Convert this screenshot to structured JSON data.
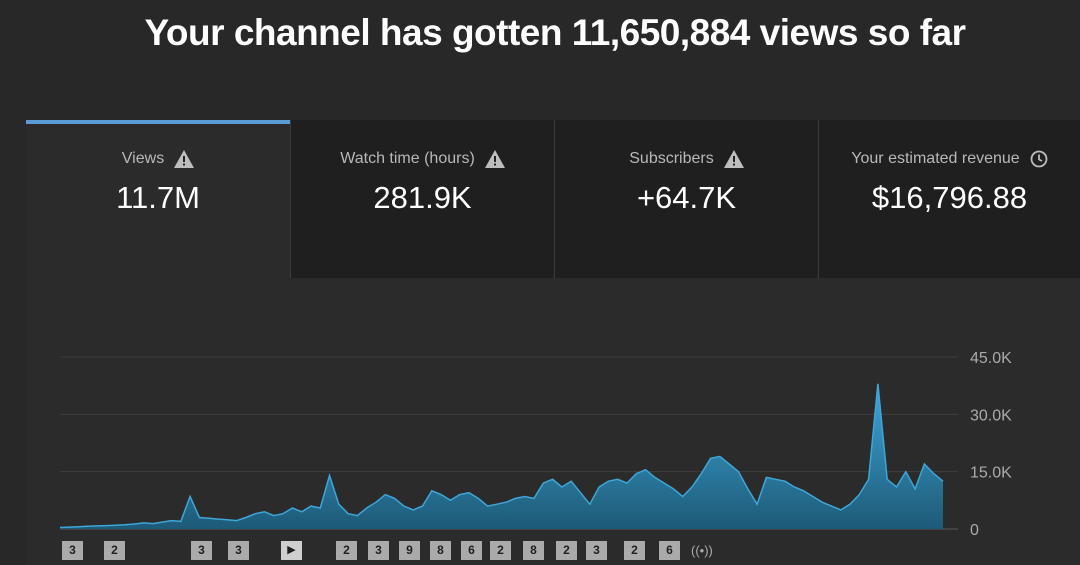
{
  "headline": "Your channel has gotten 11,650,884 views so far",
  "colors": {
    "background": "#282828",
    "panel": "#2b2b2b",
    "inactive_tab": "#1f1f1f",
    "accent": "#5b9bd5",
    "series": "#3ea6d8",
    "series_dark": "#1d5a77"
  },
  "tabs": [
    {
      "label": "Views",
      "value": "11.7M",
      "icon": "warning-icon",
      "active": true
    },
    {
      "label": "Watch time (hours)",
      "value": "281.9K",
      "icon": "warning-icon",
      "active": false
    },
    {
      "label": "Subscribers",
      "value": "+64.7K",
      "icon": "warning-icon",
      "active": false
    },
    {
      "label": "Your estimated revenue",
      "value": "$16,796.88",
      "icon": "clock-icon",
      "active": false
    }
  ],
  "chart_data": {
    "type": "area",
    "ylim": [
      0,
      45000
    ],
    "yticks": [
      {
        "value": 45000,
        "label": "45.0K"
      },
      {
        "value": 30000,
        "label": "30.0K"
      },
      {
        "value": 15000,
        "label": "15.0K"
      },
      {
        "value": 0,
        "label": "0"
      }
    ],
    "grid": true,
    "series": [
      {
        "values": [
          400,
          500,
          600,
          700,
          800,
          900,
          1000,
          1100,
          1300,
          1600,
          1400,
          1800,
          2200,
          2000,
          8500,
          3000,
          2800,
          2600,
          2400,
          2200,
          3000,
          4000,
          4500,
          3500,
          4000,
          5500,
          4500,
          6000,
          5500,
          14000,
          6500,
          4000,
          3500,
          5500,
          7000,
          9000,
          8000,
          6000,
          5000,
          6000,
          10000,
          9000,
          7500,
          9000,
          9500,
          8000,
          6000,
          6500,
          7000,
          8000,
          8500,
          8000,
          12000,
          13000,
          11000,
          12500,
          9500,
          6500,
          11000,
          12500,
          13000,
          12000,
          14500,
          15500,
          13500,
          12000,
          10500,
          8500,
          11000,
          14500,
          18500,
          19000,
          17000,
          15000,
          10500,
          6500,
          13500,
          13000,
          12500,
          11000,
          10000,
          8500,
          7000,
          6000,
          5000,
          6500,
          9000,
          13000,
          38000,
          13000,
          11000,
          15000,
          10500,
          17000,
          14500,
          12500
        ]
      }
    ],
    "video_markers": [
      "3",
      "2",
      "3",
      "3",
      "play",
      "2",
      "3",
      "9",
      "8",
      "6",
      "2",
      "8",
      "2",
      "3",
      "2",
      "6",
      "live"
    ]
  }
}
